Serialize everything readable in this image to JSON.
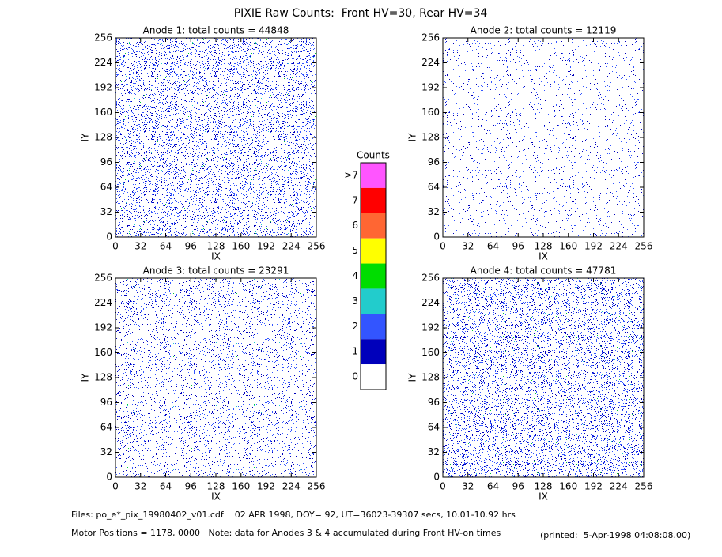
{
  "title": "PIXIE Raw Counts:  Front HV=30, Rear HV=34",
  "chart_data": [
    {
      "type": "heatmap",
      "title": "Anode 1: total counts = 44848",
      "xlabel": "IX",
      "ylabel": "IY",
      "xlim": [
        0,
        256
      ],
      "ylim": [
        0,
        256
      ],
      "xticks": [
        0,
        32,
        64,
        96,
        128,
        160,
        192,
        224,
        256
      ],
      "yticks": [
        0,
        32,
        64,
        96,
        128,
        160,
        192,
        224,
        256
      ]
    },
    {
      "type": "heatmap",
      "title": "Anode 2: total counts = 12119",
      "xlabel": "IX",
      "ylabel": "IY",
      "xlim": [
        0,
        256
      ],
      "ylim": [
        0,
        256
      ],
      "xticks": [
        0,
        32,
        64,
        96,
        128,
        160,
        192,
        224,
        256
      ],
      "yticks": [
        0,
        32,
        64,
        96,
        128,
        160,
        192,
        224,
        256
      ]
    },
    {
      "type": "heatmap",
      "title": "Anode 3: total counts = 23291",
      "xlabel": "IX",
      "ylabel": "IY",
      "xlim": [
        0,
        256
      ],
      "ylim": [
        0,
        256
      ],
      "xticks": [
        0,
        32,
        64,
        96,
        128,
        160,
        192,
        224,
        256
      ],
      "yticks": [
        0,
        32,
        64,
        96,
        128,
        160,
        192,
        224,
        256
      ]
    },
    {
      "type": "heatmap",
      "title": "Anode 4: total counts = 47781",
      "xlabel": "IX",
      "ylabel": "IY",
      "xlim": [
        0,
        256
      ],
      "ylim": [
        0,
        256
      ],
      "xticks": [
        0,
        32,
        64,
        96,
        128,
        160,
        192,
        224,
        256
      ],
      "yticks": [
        0,
        32,
        64,
        96,
        128,
        160,
        192,
        224,
        256
      ]
    }
  ],
  "colorbar": {
    "title": "Counts",
    "levels": [
      {
        "label": ">7",
        "color": "#ff55ff"
      },
      {
        "label": "7",
        "color": "#ff0000"
      },
      {
        "label": "6",
        "color": "#ff6633"
      },
      {
        "label": "5",
        "color": "#ffff00"
      },
      {
        "label": "4",
        "color": "#00dd00"
      },
      {
        "label": "3",
        "color": "#22cccc"
      },
      {
        "label": "2",
        "color": "#3355ff"
      },
      {
        "label": "1",
        "color": "#0000bb"
      },
      {
        "label": "0",
        "color": "#ffffff"
      }
    ]
  },
  "footer": {
    "files": "Files: po_e*_pix_19980402_v01.cdf    02 APR 1998, DOY= 92, UT=36023-39307 secs, 10.01-10.92 hrs",
    "motor": "Motor Positions = 1178, 0000   Note: data for Anodes 3 & 4 accumulated during Front HV-on times",
    "printed": "(printed:  5-Apr-1998 04:08:08.00)"
  }
}
